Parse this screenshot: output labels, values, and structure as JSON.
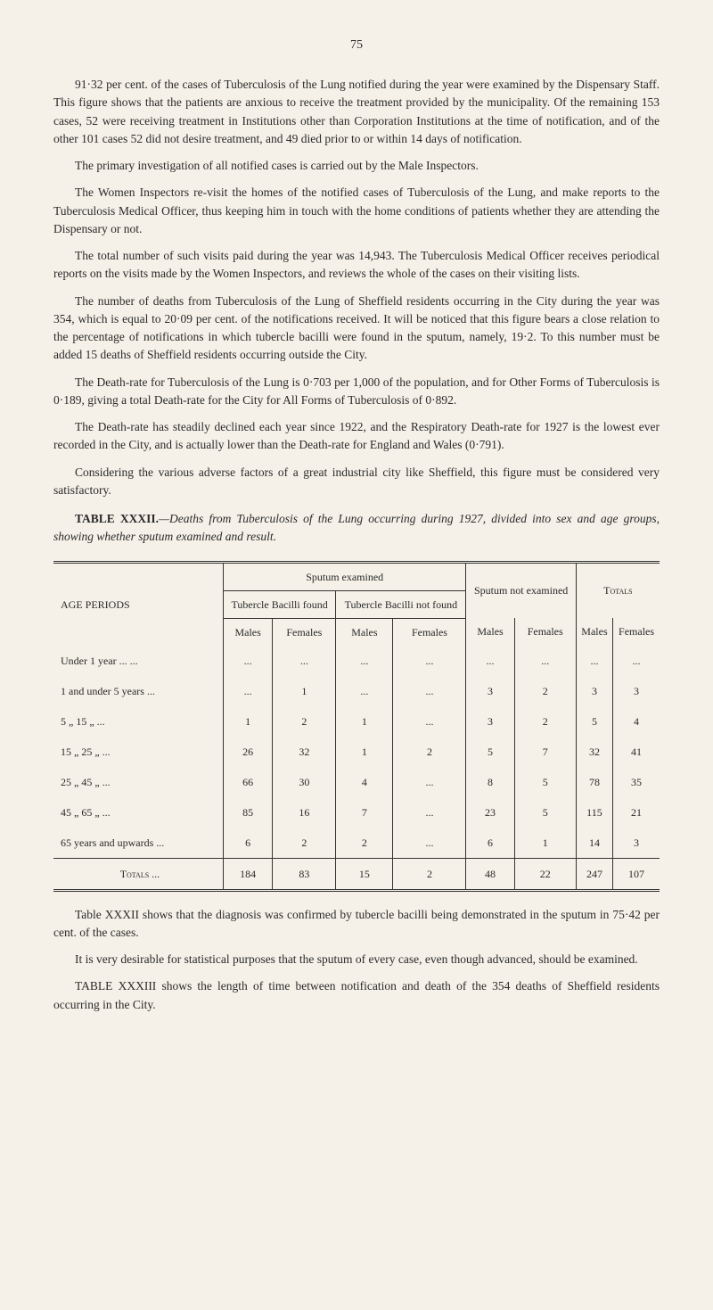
{
  "page_number": "75",
  "paragraphs": [
    "91·32 per cent. of the cases of Tuberculosis of the Lung notified during the year were examined by the Dispensary Staff. This figure shows that the patients are anxious to receive the treatment provided by the municipality. Of the remaining 153 cases, 52 were receiving treatment in Institutions other than Corporation Institutions at the time of notification, and of the other 101 cases 52 did not desire treatment, and 49 died prior to or within 14 days of notification.",
    "The primary investigation of all notified cases is carried out by the Male Inspectors.",
    "The Women Inspectors re-visit the homes of the notified cases of Tuberculosis of the Lung, and make reports to the Tuberculosis Medical Officer, thus keeping him in touch with the home conditions of patients whether they are attending the Dispensary or not.",
    "The total number of such visits paid during the year was 14,943. The Tuberculosis Medical Officer receives periodical reports on the visits made by the Women Inspectors, and reviews the whole of the cases on their visiting lists.",
    "The number of deaths from Tuberculosis of the Lung of Sheffield residents occurring in the City during the year was 354, which is equal to 20·09 per cent. of the notifications received. It will be noticed that this figure bears a close relation to the percentage of notifications in which tubercle bacilli were found in the sputum, namely, 19·2. To this number must be added 15 deaths of Sheffield residents occurring outside the City.",
    "The Death-rate for Tuberculosis of the Lung is 0·703 per 1,000 of the population, and for Other Forms of Tuberculosis is 0·189, giving a total Death-rate for the City for All Forms of Tuberculosis of 0·892.",
    "The Death-rate has steadily declined each year since 1922, and the Respiratory Death-rate for 1927 is the lowest ever recorded in the City, and is actually lower than the Death-rate for England and Wales (0·791).",
    "Considering the various adverse factors of a great industrial city like Sheffield, this figure must be considered very satisfactory."
  ],
  "table_title_bold": "TABLE XXXII.",
  "table_title_italic": "—Deaths from Tuberculosis of the Lung occurring during 1927, divided into sex and age groups, showing whether sputum examined and result.",
  "table": {
    "headers": {
      "age": "AGE PERIODS",
      "sputum_examined": "Sputum examined",
      "bacilli_found": "Tubercle Bacilli found",
      "bacilli_not_found": "Tubercle Bacilli not found",
      "sputum_not_examined": "Sputum not examined",
      "totals": "Totals",
      "males": "Males",
      "females": "Females"
    },
    "rows": [
      {
        "age": "Under 1 year   ...   ...",
        "bf_m": "...",
        "bf_f": "...",
        "bnf_m": "...",
        "bnf_f": "...",
        "ne_m": "...",
        "ne_f": "...",
        "t_m": "...",
        "t_f": "..."
      },
      {
        "age": "1 and under 5 years ...",
        "bf_m": "...",
        "bf_f": "1",
        "bnf_m": "...",
        "bnf_f": "...",
        "ne_m": "3",
        "ne_f": "2",
        "t_m": "3",
        "t_f": "3"
      },
      {
        "age": "5   „      15  „   ...",
        "bf_m": "1",
        "bf_f": "2",
        "bnf_m": "1",
        "bnf_f": "...",
        "ne_m": "3",
        "ne_f": "2",
        "t_m": "5",
        "t_f": "4"
      },
      {
        "age": "15  „      25  „   ...",
        "bf_m": "26",
        "bf_f": "32",
        "bnf_m": "1",
        "bnf_f": "2",
        "ne_m": "5",
        "ne_f": "7",
        "t_m": "32",
        "t_f": "41"
      },
      {
        "age": "25  „      45  „   ...",
        "bf_m": "66",
        "bf_f": "30",
        "bnf_m": "4",
        "bnf_f": "...",
        "ne_m": "8",
        "ne_f": "5",
        "t_m": "78",
        "t_f": "35"
      },
      {
        "age": "45  „      65  „   ...",
        "bf_m": "85",
        "bf_f": "16",
        "bnf_m": "7",
        "bnf_f": "...",
        "ne_m": "23",
        "ne_f": "5",
        "t_m": "115",
        "t_f": "21"
      },
      {
        "age": "65 years and upwards ...",
        "bf_m": "6",
        "bf_f": "2",
        "bnf_m": "2",
        "bnf_f": "...",
        "ne_m": "6",
        "ne_f": "1",
        "t_m": "14",
        "t_f": "3"
      }
    ],
    "totals_row": {
      "age": "Totals   ...",
      "bf_m": "184",
      "bf_f": "83",
      "bnf_m": "15",
      "bnf_f": "2",
      "ne_m": "48",
      "ne_f": "22",
      "t_m": "247",
      "t_f": "107"
    }
  },
  "footer_paragraphs": [
    "Table XXXII shows that the diagnosis was confirmed by tubercle bacilli being demonstrated in the sputum in 75·42 per cent. of the cases.",
    "It is very desirable for statistical purposes that the sputum of every case, even though advanced, should be examined.",
    "TABLE XXXIII shows the length of time between notification and death of the 354 deaths of Sheffield residents occurring in the City."
  ]
}
